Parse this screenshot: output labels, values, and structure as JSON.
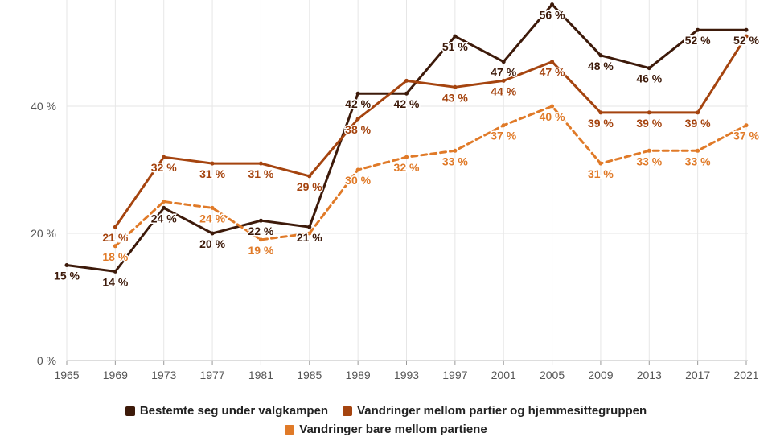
{
  "chart_data": {
    "type": "line",
    "x": [
      1965,
      1969,
      1973,
      1977,
      1981,
      1985,
      1989,
      1993,
      1997,
      2001,
      2005,
      2009,
      2013,
      2017,
      2021
    ],
    "ylim": [
      0,
      56
    ],
    "yticks": [
      0,
      20,
      40
    ],
    "ytick_labels": [
      "0 %",
      "20 %",
      "40 %"
    ],
    "grid": true,
    "legend_position": "bottom",
    "series": [
      {
        "name": "Bestemte seg under valgkampen",
        "color": "#3d1a0a",
        "dashed": false,
        "values": [
          15,
          14,
          24,
          20,
          22,
          21,
          42,
          42,
          51,
          47,
          56,
          48,
          46,
          52,
          52
        ],
        "labels": [
          "15 %",
          "14 %",
          "24 %",
          "20 %",
          "22 %",
          "21 %",
          "42 %",
          "42 %",
          "51 %",
          "47 %",
          "56 %",
          "48 %",
          "46 %",
          "52 %",
          "52 %"
        ]
      },
      {
        "name": "Vandringer mellom partier og hjemmesittegruppen",
        "color": "#a5440f",
        "dashed": false,
        "values": [
          null,
          21,
          32,
          31,
          31,
          29,
          38,
          44,
          43,
          44,
          47,
          39,
          39,
          39,
          51
        ],
        "labels": [
          null,
          "21 %",
          "32 %",
          "31 %",
          "31 %",
          "29 %",
          "38 %",
          null,
          "43 %",
          "44 %",
          "47 %",
          "39 %",
          "39 %",
          "39 %",
          null
        ]
      },
      {
        "name": "Vandringer bare mellom partiene",
        "color": "#e07a28",
        "dashed": true,
        "values": [
          null,
          18,
          25,
          24,
          19,
          20,
          30,
          32,
          33,
          37,
          40,
          31,
          33,
          33,
          37
        ],
        "labels": [
          null,
          "18 %",
          null,
          "24 %",
          "19 %",
          null,
          "30 %",
          "32 %",
          "33 %",
          "37 %",
          "40 %",
          "31 %",
          "33 %",
          "33 %",
          "37 %"
        ]
      }
    ]
  }
}
